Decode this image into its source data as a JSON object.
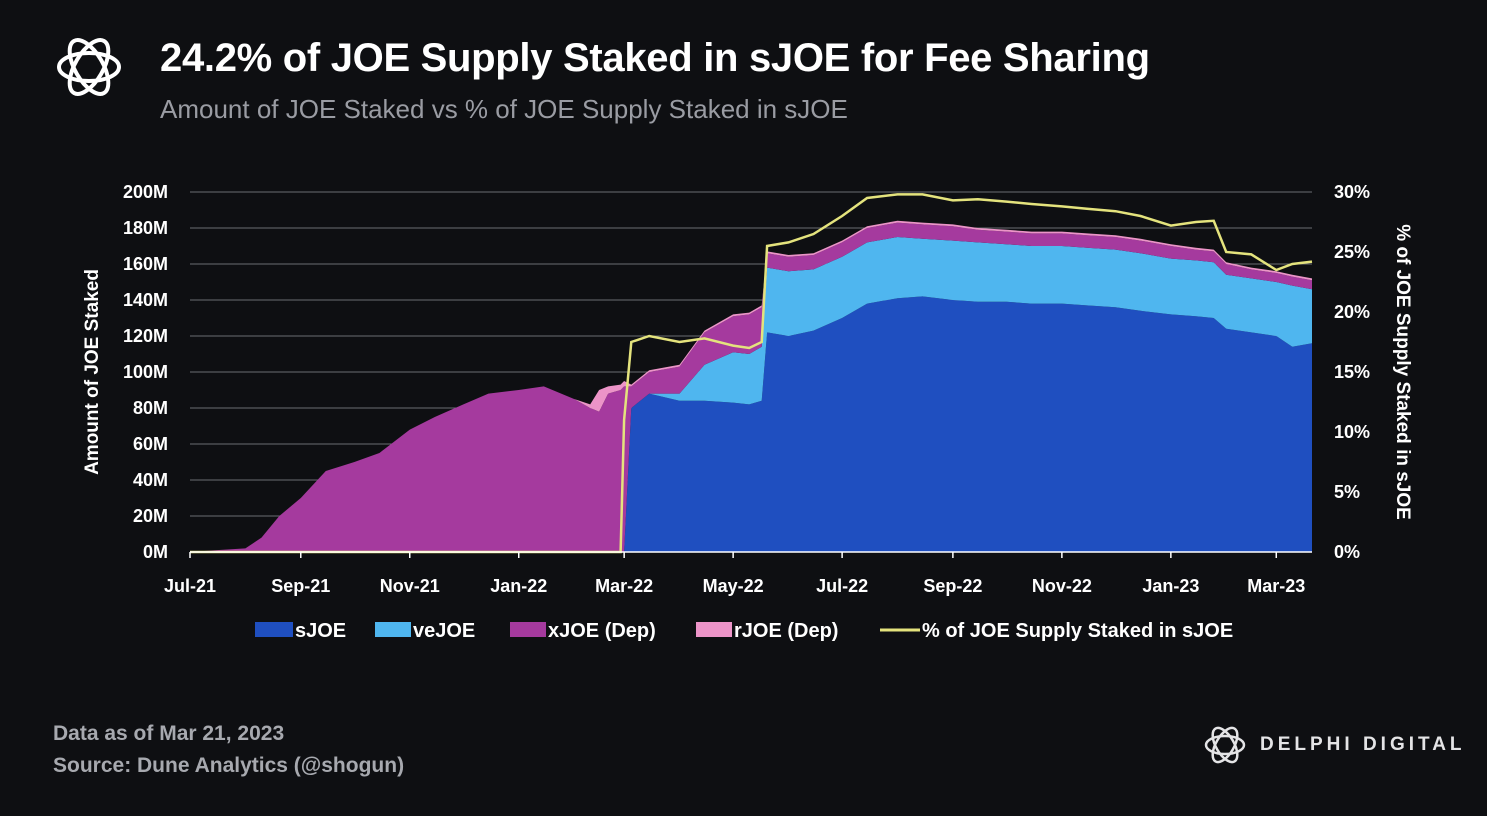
{
  "header": {
    "title": "24.2% of JOE Supply Staked in sJOE for Fee Sharing",
    "subtitle": "Amount of JOE Staked vs % of JOE Supply Staked in sJOE"
  },
  "footer": {
    "date_line": "Data as of Mar 21, 2023",
    "source_line": "Source: Dune Analytics (@shogun)",
    "brand": "DELPHI DIGITAL"
  },
  "colors": {
    "background": "#0e0f12",
    "sJOE": "#1f4fc0",
    "veJOE": "#4fb6ef",
    "xJOE": "#a53a9e",
    "rJOE": "#ec94c8",
    "pct_line": "#e4e37d",
    "grid": "#6b6d72"
  },
  "chart_data": {
    "type": "area",
    "ylabel": "Amount of JOE Staked",
    "y2label": "% of JOE Supply Staked in sJOE",
    "ylim": [
      0,
      200
    ],
    "y2lim": [
      0,
      30
    ],
    "yticks": [
      "0M",
      "20M",
      "40M",
      "60M",
      "80M",
      "100M",
      "120M",
      "140M",
      "160M",
      "180M",
      "200M"
    ],
    "y2ticks": [
      "0%",
      "5%",
      "10%",
      "15%",
      "20%",
      "25%",
      "30%"
    ],
    "xticks": [
      "Jul-21",
      "Sep-21",
      "Nov-21",
      "Jan-22",
      "Mar-22",
      "May-22",
      "Jul-22",
      "Sep-22",
      "Nov-22",
      "Jan-23",
      "Mar-23"
    ],
    "grid": true,
    "legend_position": "bottom",
    "x": [
      "2021-07-01",
      "2021-07-15",
      "2021-08-01",
      "2021-08-10",
      "2021-08-20",
      "2021-09-01",
      "2021-09-15",
      "2021-10-01",
      "2021-10-15",
      "2021-11-01",
      "2021-11-15",
      "2021-12-01",
      "2021-12-15",
      "2022-01-01",
      "2022-01-15",
      "2022-02-01",
      "2022-02-10",
      "2022-02-15",
      "2022-02-20",
      "2022-02-27",
      "2022-03-01",
      "2022-03-05",
      "2022-03-15",
      "2022-04-01",
      "2022-04-15",
      "2022-05-01",
      "2022-05-10",
      "2022-05-17",
      "2022-05-20",
      "2022-06-01",
      "2022-06-15",
      "2022-07-01",
      "2022-07-15",
      "2022-08-01",
      "2022-08-15",
      "2022-09-01",
      "2022-09-15",
      "2022-10-01",
      "2022-10-15",
      "2022-11-01",
      "2022-11-15",
      "2022-12-01",
      "2022-12-15",
      "2023-01-01",
      "2023-01-15",
      "2023-01-25",
      "2023-02-01",
      "2023-02-15",
      "2023-03-01",
      "2023-03-10",
      "2023-03-21"
    ],
    "series": [
      {
        "name": "sJOE",
        "values": [
          0,
          0,
          0,
          0,
          0,
          0,
          0,
          0,
          0,
          0,
          0,
          0,
          0,
          0,
          0,
          0,
          0,
          0,
          0,
          0,
          0,
          80,
          88,
          84,
          84,
          83,
          82,
          84,
          122,
          120,
          123,
          130,
          138,
          141,
          142,
          140,
          139,
          139,
          138,
          138,
          137,
          136,
          134,
          132,
          131,
          130,
          124,
          122,
          120,
          114,
          116
        ]
      },
      {
        "name": "veJOE",
        "values": [
          0,
          0,
          0,
          0,
          0,
          0,
          0,
          0,
          0,
          0,
          0,
          0,
          0,
          0,
          0,
          0,
          0,
          0,
          0,
          0,
          0,
          0,
          0,
          4,
          20,
          28,
          28,
          30,
          36,
          36,
          34,
          34,
          34,
          34,
          32,
          33,
          33,
          32,
          32,
          32,
          32,
          32,
          32,
          31,
          31,
          31,
          30,
          30,
          30,
          34,
          30
        ]
      },
      {
        "name": "xJOE (Dep)",
        "values": [
          0,
          1,
          2,
          8,
          20,
          30,
          45,
          50,
          55,
          68,
          75,
          82,
          88,
          90,
          92,
          85,
          80,
          78,
          88,
          90,
          92,
          12,
          12,
          15,
          18,
          20,
          22,
          22,
          8,
          8,
          8,
          8,
          8,
          8,
          8,
          8,
          7,
          7,
          7,
          7,
          7,
          7,
          7,
          7,
          6,
          6,
          6,
          5,
          5,
          5,
          5
        ]
      },
      {
        "name": "rJOE (Dep)",
        "values": [
          0,
          0,
          0,
          0,
          0,
          0,
          0,
          0,
          0,
          0,
          0,
          0,
          0,
          0,
          0,
          0,
          2,
          12,
          4,
          3,
          3,
          1,
          1,
          1,
          1,
          1,
          1,
          1,
          1,
          1,
          1,
          1,
          1,
          1,
          1,
          1,
          1,
          1,
          1,
          1,
          1,
          1,
          1,
          1,
          1,
          1,
          1,
          1,
          1,
          1,
          1
        ]
      },
      {
        "name": "% of JOE Supply Staked in sJOE",
        "axis": "right",
        "values": [
          0,
          0,
          0,
          0,
          0,
          0,
          0,
          0,
          0,
          0,
          0,
          0,
          0,
          0,
          0,
          0,
          0,
          0,
          0,
          0,
          11,
          17.5,
          18,
          17.5,
          17.8,
          17.2,
          17,
          17.5,
          25.5,
          25.8,
          26.5,
          28,
          29.5,
          29.8,
          29.8,
          29.3,
          29.4,
          29.2,
          29,
          28.8,
          28.6,
          28.4,
          28,
          27.2,
          27.5,
          27.6,
          25,
          24.8,
          23.5,
          24,
          24.2
        ]
      }
    ]
  }
}
